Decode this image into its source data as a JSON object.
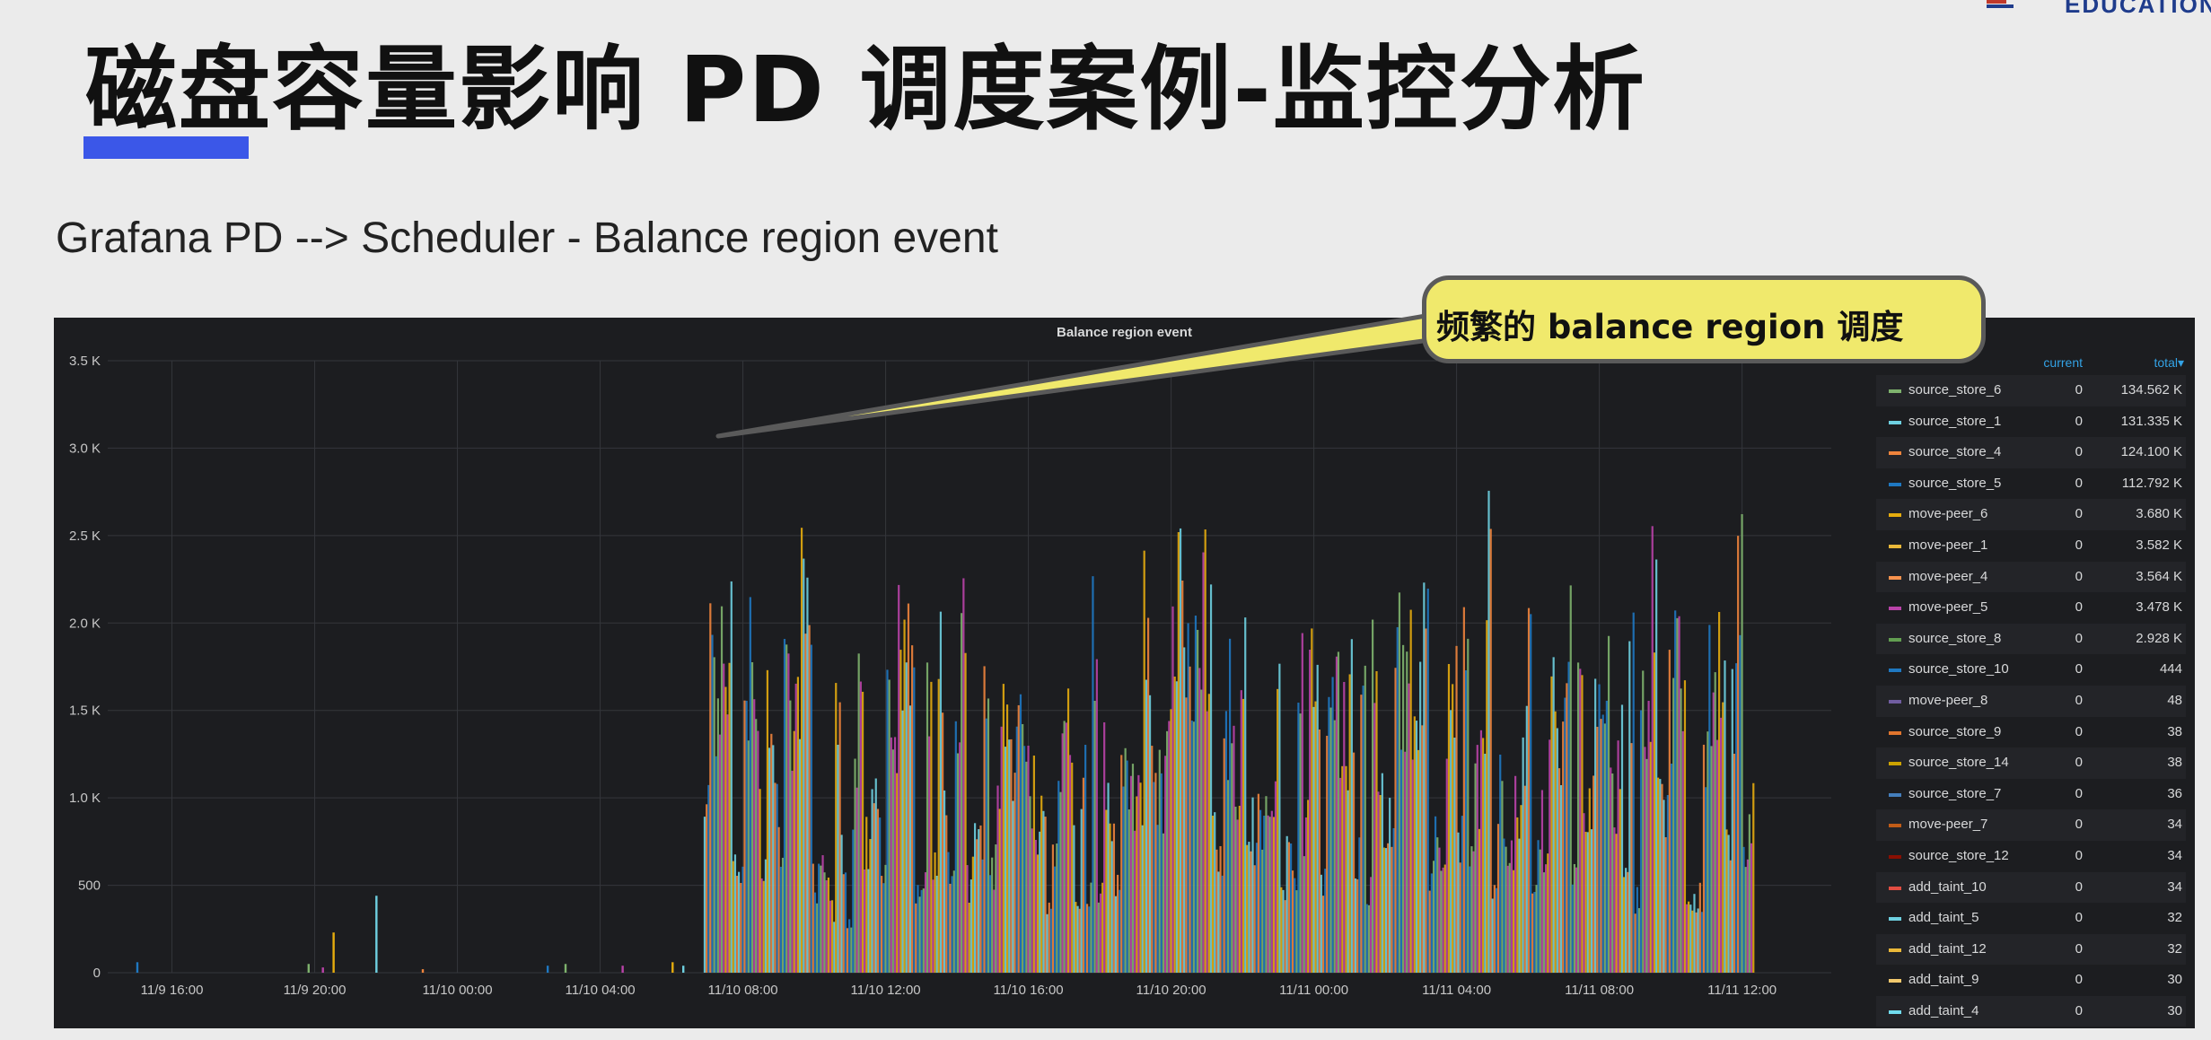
{
  "slide": {
    "title": "磁盘容量影响 PD 调度案例-监控分析",
    "subtitle": "Grafana PD --> Scheduler - Balance region event",
    "logo_text": "EDUCATION",
    "callout": "频繁的 balance region 调度",
    "accent_color": "#3b57e8",
    "callout_color": "#f0e96c"
  },
  "panel": {
    "title": "Balance region event",
    "legend_headers": {
      "current": "current",
      "total": "total▾"
    },
    "legend": [
      {
        "name": "source_store_6",
        "current": "0",
        "total": "134.562 K",
        "color": "#7eb26d"
      },
      {
        "name": "source_store_1",
        "current": "0",
        "total": "131.335 K",
        "color": "#6ed0e0"
      },
      {
        "name": "source_store_4",
        "current": "0",
        "total": "124.100 K",
        "color": "#ef843c"
      },
      {
        "name": "source_store_5",
        "current": "0",
        "total": "112.792 K",
        "color": "#1f78c1"
      },
      {
        "name": "move-peer_6",
        "current": "0",
        "total": "3.680 K",
        "color": "#e5ac0e"
      },
      {
        "name": "move-peer_1",
        "current": "0",
        "total": "3.582 K",
        "color": "#eab839"
      },
      {
        "name": "move-peer_4",
        "current": "0",
        "total": "3.564 K",
        "color": "#f9934e"
      },
      {
        "name": "move-peer_5",
        "current": "0",
        "total": "3.478 K",
        "color": "#ba43a9"
      },
      {
        "name": "source_store_8",
        "current": "0",
        "total": "2.928 K",
        "color": "#629e51"
      },
      {
        "name": "source_store_10",
        "current": "0",
        "total": "444",
        "color": "#1f78c1"
      },
      {
        "name": "move-peer_8",
        "current": "0",
        "total": "48",
        "color": "#705da0"
      },
      {
        "name": "source_store_9",
        "current": "0",
        "total": "38",
        "color": "#e0752d"
      },
      {
        "name": "source_store_14",
        "current": "0",
        "total": "38",
        "color": "#cca300"
      },
      {
        "name": "source_store_7",
        "current": "0",
        "total": "36",
        "color": "#447ebc"
      },
      {
        "name": "move-peer_7",
        "current": "0",
        "total": "34",
        "color": "#c15c17"
      },
      {
        "name": "source_store_12",
        "current": "0",
        "total": "34",
        "color": "#890f02"
      },
      {
        "name": "add_taint_10",
        "current": "0",
        "total": "34",
        "color": "#e24d42"
      },
      {
        "name": "add_taint_5",
        "current": "0",
        "total": "32",
        "color": "#6ed0e0"
      },
      {
        "name": "add_taint_12",
        "current": "0",
        "total": "32",
        "color": "#eab839"
      },
      {
        "name": "add_taint_9",
        "current": "0",
        "total": "30",
        "color": "#f2c96d"
      },
      {
        "name": "add_taint_4",
        "current": "0",
        "total": "30",
        "color": "#70dbed"
      }
    ]
  },
  "chart_data": {
    "type": "bar",
    "title": "Balance region event",
    "ylim": [
      0,
      3500
    ],
    "y_ticks": [
      "0",
      "500",
      "1.0 K",
      "1.5 K",
      "2.0 K",
      "2.5 K",
      "3.0 K",
      "3.5 K"
    ],
    "x_ticks": [
      "11/9 16:00",
      "11/9 20:00",
      "11/10 00:00",
      "11/10 04:00",
      "11/10 08:00",
      "11/10 12:00",
      "11/10 16:00",
      "11/10 20:00",
      "11/11 00:00",
      "11/11 04:00",
      "11/11 08:00",
      "11/11 12:00"
    ],
    "x_hours": [
      0,
      4,
      8,
      12,
      16,
      20,
      24,
      28,
      32,
      36,
      40,
      44
    ],
    "x_range_hours": [
      -1.8,
      46.5
    ],
    "grid": true,
    "legend_position": "right",
    "colors": [
      "#6ed0e0",
      "#ef843c",
      "#1f78c1",
      "#7eb26d",
      "#ba43a9",
      "#e5ac0e"
    ],
    "baseline_spikes": [
      {
        "x": -1.0,
        "value": 60
      },
      {
        "x": 3.8,
        "value": 50
      },
      {
        "x": 4.2,
        "value": 30
      },
      {
        "x": 4.5,
        "value": 230
      },
      {
        "x": 5.7,
        "value": 440
      },
      {
        "x": 7.0,
        "value": 20
      },
      {
        "x": 10.5,
        "value": 40
      },
      {
        "x": 11.0,
        "value": 50
      },
      {
        "x": 12.6,
        "value": 40
      },
      {
        "x": 14.0,
        "value": 60
      },
      {
        "x": 14.3,
        "value": 40
      }
    ],
    "burst": {
      "x_start": 14.9,
      "x_end": 44.3,
      "step": 0.16,
      "peak": 3050,
      "note": "Frequent balance region events, values mostly between 500 and 3000"
    }
  }
}
